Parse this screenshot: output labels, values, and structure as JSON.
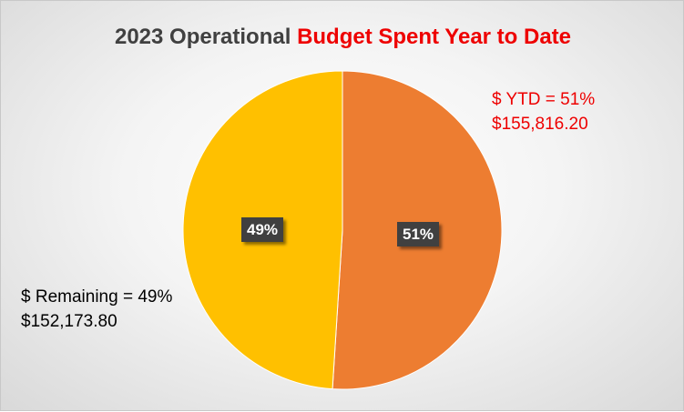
{
  "chart_data": {
    "type": "pie",
    "title": "2023 Operational Budget Spent Year to Date",
    "title_parts": {
      "plain": "2023 Operational ",
      "highlight": "Budget Spent Year to Date"
    },
    "slices": [
      {
        "name": "$ YTD",
        "percent": 51,
        "label": "51%",
        "amount": 155816.2,
        "callout_line1": "$ YTD = 51%",
        "callout_line2": "$155,816.20",
        "color": "#ed7d31",
        "callout_color": "#ee0000"
      },
      {
        "name": "$ Remaining",
        "percent": 49,
        "label": "49%",
        "amount": 152173.8,
        "callout_line1": "$ Remaining = 49%",
        "callout_line2": "$152,173.80",
        "color": "#ffc000",
        "callout_color": "#000000"
      }
    ],
    "start_angle_deg": 0,
    "direction": "clockwise",
    "legend": "none"
  }
}
